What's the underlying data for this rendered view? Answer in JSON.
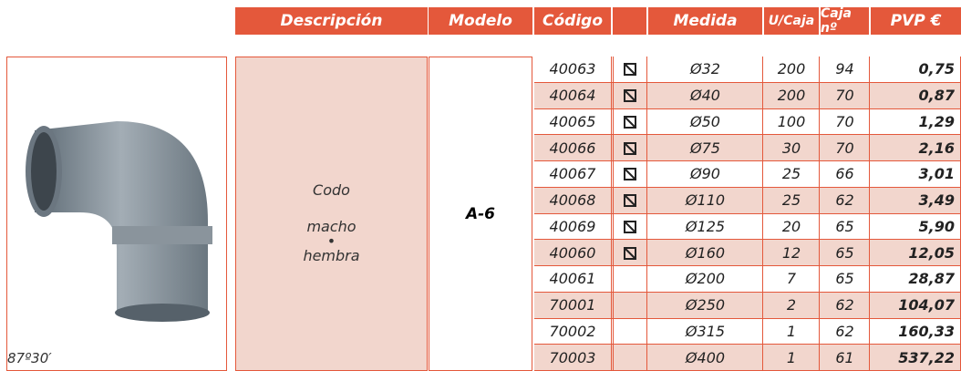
{
  "header": [
    "Descripción",
    "Modelo",
    "Código",
    "Medida",
    "U/Caja",
    "Caja nº",
    "PVP €"
  ],
  "description": [
    "Codo",
    "macho",
    "•",
    "hembra"
  ],
  "model": "A-6",
  "caption": "87º30′",
  "rows": [
    [
      "40063",
      "Ø32",
      "200",
      "94",
      "0,75"
    ],
    [
      "40064",
      "Ø40",
      "200",
      "70",
      "0,87"
    ],
    [
      "40065",
      "Ø50",
      "100",
      "70",
      "1,29"
    ],
    [
      "40066",
      "Ø75",
      "30",
      "70",
      "2,16"
    ],
    [
      "40067",
      "Ø90",
      "25",
      "66",
      "3,01"
    ],
    [
      "40068",
      "Ø110",
      "25",
      "62",
      "3,49"
    ],
    [
      "40069",
      "Ø125",
      "20",
      "65",
      "5,90"
    ],
    [
      "40060",
      "Ø160",
      "12",
      "65",
      "12,05"
    ],
    [
      "40061",
      "Ø200",
      "7",
      "65",
      "28,87"
    ],
    [
      "70001",
      "Ø250",
      "2",
      "62",
      "104,07"
    ],
    [
      "70002",
      "Ø315",
      "1",
      "62",
      "160,33"
    ],
    [
      "70003",
      "Ø400",
      "1",
      "61",
      "537,22"
    ]
  ]
}
